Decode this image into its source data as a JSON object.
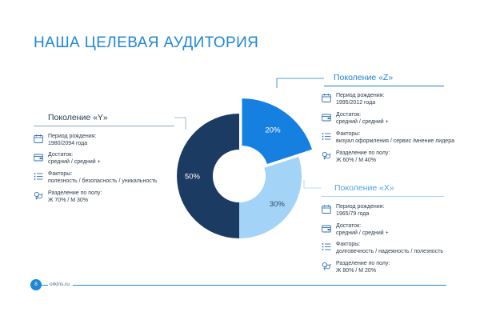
{
  "title": "НАША ЦЕЛЕВАЯ АУДИТОРИЯ",
  "chart_data": {
    "type": "pie",
    "donut": true,
    "slices": [
      {
        "label": "20%",
        "value": 20,
        "color": "#1580e0",
        "generation": "Поколение «Z»"
      },
      {
        "label": "30%",
        "value": 30,
        "color": "#a3d3f7",
        "generation": "Поколение «X»"
      },
      {
        "label": "50%",
        "value": 50,
        "color": "#1c3b63",
        "generation": "Поколение «Y»"
      }
    ]
  },
  "generations": {
    "y": {
      "title": "Поколение «Y»",
      "rows": [
        {
          "icon": "calendar-icon",
          "label": "Период рождения:",
          "value": "1980/2094 года"
        },
        {
          "icon": "wallet-icon",
          "label": "Достаток:",
          "value": "средний / средний +"
        },
        {
          "icon": "list-icon",
          "label": "Факторы:",
          "value": "полезность / безопасность / уникальность"
        },
        {
          "icon": "gender-icon",
          "label": "Разделение по полу:",
          "value": "Ж 70% / М 30%"
        }
      ]
    },
    "z": {
      "title": "Поколение «Z»",
      "rows": [
        {
          "icon": "calendar-icon",
          "label": "Период рождения:",
          "value": "1995/2012 года"
        },
        {
          "icon": "wallet-icon",
          "label": "Достаток:",
          "value": "средний / средний +"
        },
        {
          "icon": "list-icon",
          "label": "Факторы:",
          "value": "визуал оформления / сервис /мнение лидера"
        },
        {
          "icon": "gender-icon",
          "label": "Разделение по полу:",
          "value": "Ж 60% / М 40%"
        }
      ]
    },
    "x": {
      "title": "Поколение «X»",
      "rows": [
        {
          "icon": "calendar-icon",
          "label": "Период рождения:",
          "value": "1965/79 года"
        },
        {
          "icon": "wallet-icon",
          "label": "Достаток:",
          "value": "средний / средний +"
        },
        {
          "icon": "list-icon",
          "label": "Факторы:",
          "value": "долговечность / надежность / полезность"
        },
        {
          "icon": "gender-icon",
          "label": "Разделение по полу:",
          "value": "Ж 80% / М 20%"
        }
      ]
    }
  },
  "footer": {
    "page": "8",
    "site": "orkins.ru"
  },
  "colors": {
    "accent": "#1f86d6",
    "dark": "#1c3b63",
    "light": "#a3d3f7",
    "mid": "#1580e0"
  }
}
